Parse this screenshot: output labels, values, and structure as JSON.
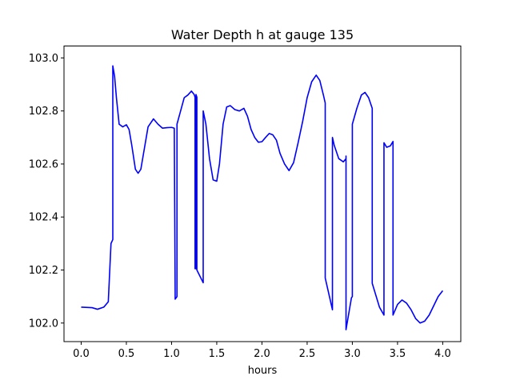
{
  "chart_data": {
    "type": "line",
    "title": "Water Depth h at gauge 135",
    "xlabel": "hours",
    "ylabel": "",
    "xlim": [
      -0.19,
      4.2
    ],
    "ylim": [
      101.93,
      103.045
    ],
    "grid": false,
    "x_ticks": [
      0.0,
      0.5,
      1.0,
      1.5,
      2.0,
      2.5,
      3.0,
      3.5,
      4.0
    ],
    "x_tick_labels": [
      "0.0",
      "0.5",
      "1.0",
      "1.5",
      "2.0",
      "2.5",
      "3.0",
      "3.5",
      "4.0"
    ],
    "y_ticks": [
      102.0,
      102.2,
      102.4,
      102.6,
      102.8,
      103.0
    ],
    "y_tick_labels": [
      "102.0",
      "102.2",
      "102.4",
      "102.6",
      "102.8",
      "103.0"
    ],
    "series": [
      {
        "color": "#0000ff",
        "x": [
          0.0,
          0.12,
          0.18,
          0.25,
          0.3,
          0.33,
          0.35,
          0.35,
          0.37,
          0.39,
          0.42,
          0.46,
          0.5,
          0.53,
          0.56,
          0.6,
          0.63,
          0.66,
          0.7,
          0.74,
          0.8,
          0.85,
          0.9,
          0.95,
          1.0,
          1.03,
          1.04,
          1.04,
          1.06,
          1.06,
          1.1,
          1.14,
          1.18,
          1.22,
          1.25,
          1.26,
          1.26,
          1.27,
          1.27,
          1.28,
          1.28,
          1.35,
          1.35,
          1.38,
          1.42,
          1.46,
          1.5,
          1.53,
          1.57,
          1.61,
          1.65,
          1.7,
          1.75,
          1.8,
          1.84,
          1.88,
          1.92,
          1.96,
          2.0,
          2.04,
          2.08,
          2.12,
          2.16,
          2.2,
          2.25,
          2.3,
          2.35,
          2.4,
          2.45,
          2.5,
          2.55,
          2.6,
          2.64,
          2.68,
          2.7,
          2.7,
          2.78,
          2.78,
          2.8,
          2.85,
          2.9,
          2.93,
          2.93,
          2.93,
          2.99,
          3.0,
          3.0,
          3.05,
          3.1,
          3.14,
          3.18,
          3.22,
          3.22,
          3.3,
          3.35,
          3.35,
          3.38,
          3.42,
          3.45,
          3.45,
          3.5,
          3.55,
          3.6,
          3.65,
          3.7,
          3.75,
          3.8,
          3.85,
          3.9,
          3.95,
          4.0
        ],
        "y": [
          102.06,
          102.058,
          102.052,
          102.06,
          102.08,
          102.3,
          102.315,
          102.97,
          102.93,
          102.85,
          102.75,
          102.74,
          102.748,
          102.73,
          102.67,
          102.58,
          102.565,
          102.58,
          102.66,
          102.74,
          102.77,
          102.75,
          102.735,
          102.737,
          102.738,
          102.735,
          102.09,
          102.09,
          102.1,
          102.75,
          102.8,
          102.85,
          102.86,
          102.875,
          102.862,
          102.852,
          102.205,
          102.205,
          102.862,
          102.852,
          102.2,
          102.152,
          102.8,
          102.75,
          102.62,
          102.54,
          102.535,
          102.6,
          102.75,
          102.815,
          102.82,
          102.805,
          102.8,
          102.81,
          102.78,
          102.73,
          102.7,
          102.682,
          102.684,
          102.7,
          102.715,
          102.71,
          102.69,
          102.64,
          102.6,
          102.575,
          102.605,
          102.68,
          102.76,
          102.85,
          102.91,
          102.935,
          102.915,
          102.86,
          102.83,
          102.17,
          102.05,
          102.7,
          102.67,
          102.62,
          102.608,
          102.62,
          102.63,
          101.975,
          102.095,
          102.1,
          102.75,
          102.81,
          102.86,
          102.87,
          102.85,
          102.81,
          102.15,
          102.06,
          102.03,
          102.68,
          102.663,
          102.668,
          102.685,
          102.03,
          102.07,
          102.087,
          102.075,
          102.05,
          102.017,
          102.0,
          102.007,
          102.03,
          102.065,
          102.1,
          102.122
        ]
      }
    ]
  }
}
